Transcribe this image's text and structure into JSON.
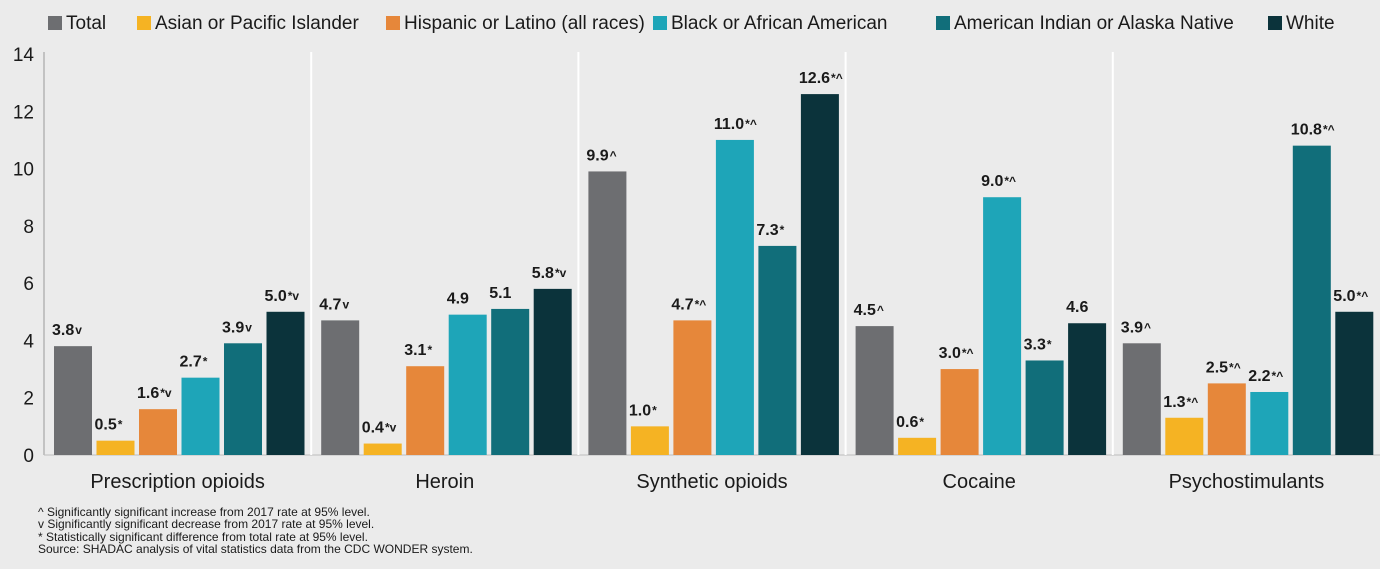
{
  "chart_data": {
    "type": "bar",
    "title": "",
    "xlabel": "",
    "ylabel": "",
    "ylim": [
      0,
      14
    ],
    "yticks": [
      0,
      2,
      4,
      6,
      8,
      10,
      12,
      14
    ],
    "grid": false,
    "legend_position": "top",
    "categories": [
      "Prescription opioids",
      "Heroin",
      "Synthetic opioids",
      "Cocaine",
      "Psychostimulants"
    ],
    "series": [
      {
        "name": "Total",
        "color": "#6d6e71",
        "values": [
          3.8,
          4.7,
          9.9,
          4.5,
          3.9
        ],
        "labels": [
          "3.8",
          "4.7",
          "9.9",
          "4.5",
          "3.9"
        ],
        "flags": [
          "v",
          "v",
          "^",
          "^",
          "^"
        ]
      },
      {
        "name": "Asian or Pacific Islander",
        "color": "#f5b323",
        "values": [
          0.5,
          0.4,
          1.0,
          0.6,
          1.3
        ],
        "labels": [
          "0.5",
          "0.4",
          "1.0",
          "0.6",
          "1.3"
        ],
        "flags": [
          "*",
          "*v",
          "*",
          "*",
          "*^"
        ]
      },
      {
        "name": "Hispanic or Latino (all races)",
        "color": "#e6873a",
        "values": [
          1.6,
          3.1,
          4.7,
          3.0,
          2.5
        ],
        "labels": [
          "1.6",
          "3.1",
          "4.7",
          "3.0",
          "2.5"
        ],
        "flags": [
          "*v",
          "*",
          "*^",
          "*^",
          "*^"
        ]
      },
      {
        "name": "Black or African American",
        "color": "#1ea5b8",
        "values": [
          2.7,
          4.9,
          11.0,
          9.0,
          2.2
        ],
        "labels": [
          "2.7",
          "4.9",
          "11.0",
          "9.0",
          "2.2"
        ],
        "flags": [
          "*",
          "",
          "*^",
          "*^",
          "*^"
        ]
      },
      {
        "name": "American Indian or Alaska Native",
        "color": "#116e7a",
        "values": [
          3.9,
          5.1,
          7.3,
          3.3,
          10.8
        ],
        "labels": [
          "3.9",
          "5.1",
          "7.3",
          "3.3",
          "10.8"
        ],
        "flags": [
          "v",
          "",
          "*",
          "*",
          "*^"
        ]
      },
      {
        "name": "White",
        "color": "#0b333b",
        "values": [
          5.0,
          5.8,
          12.6,
          4.6,
          5.0
        ],
        "labels": [
          "5.0",
          "5.8",
          "12.6",
          "4.6",
          "5.0"
        ],
        "flags": [
          "*v",
          "*v",
          "*^",
          "",
          "*^"
        ]
      }
    ]
  },
  "footnotes": [
    "^ Significantly significant increase from 2017 rate at 95% level.",
    "v Significantly significant decrease from 2017 rate at 95% level.",
    "* Statistically significant difference from total rate at 95% level.",
    "Source: SHADAC analysis of vital statistics data from the CDC WONDER system."
  ]
}
